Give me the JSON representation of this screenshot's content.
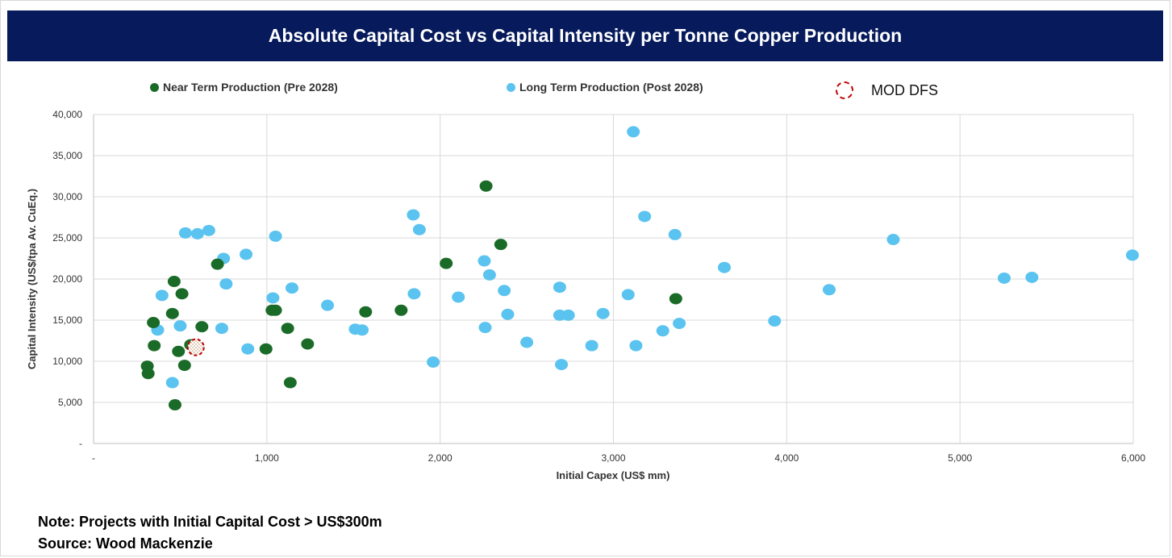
{
  "header": {
    "title": "Absolute Capital Cost vs Capital Intensity per Tonne Copper Production"
  },
  "legend": {
    "near_term": "Near Term Production (Pre 2028)",
    "long_term": "Long Term Production (Post 2028)",
    "mod": "MOD DFS"
  },
  "notes": {
    "note": "Note: Projects with Initial Capital Cost > US$300m",
    "source": "Source: Wood Mackenzie"
  },
  "colors": {
    "near_term": "#1b6b28",
    "long_term": "#5bc3ef",
    "mod_ring": "#c00000",
    "title_bg": "#061a5c"
  },
  "chart_data": {
    "type": "scatter",
    "xlabel": "Initial Capex (US$ mm)",
    "ylabel": "Capital Intensity (US$/tpa Av. CuEq.)",
    "xlim": [
      0,
      6000
    ],
    "ylim": [
      0,
      40000
    ],
    "x_ticks": [
      0,
      1000,
      2000,
      3000,
      4000,
      5000,
      6000
    ],
    "x_tick_labels": [
      "-",
      "1,000",
      "2,000",
      "3,000",
      "4,000",
      "5,000",
      "6,000"
    ],
    "y_ticks": [
      0,
      5000,
      10000,
      15000,
      20000,
      25000,
      30000,
      35000,
      40000
    ],
    "y_tick_labels": [
      "-",
      "5,000",
      "10,000",
      "15,000",
      "20,000",
      "25,000",
      "30,000",
      "35,000",
      "40,000"
    ],
    "grid": true,
    "legend_position": "top",
    "series": [
      {
        "name": "Near Term Production (Pre 2028)",
        "points": [
          [
            310,
            9400
          ],
          [
            315,
            8500
          ],
          [
            345,
            14700
          ],
          [
            350,
            11900
          ],
          [
            455,
            15800
          ],
          [
            465,
            19700
          ],
          [
            470,
            4700
          ],
          [
            490,
            11200
          ],
          [
            510,
            18200
          ],
          [
            525,
            9500
          ],
          [
            560,
            12000
          ],
          [
            625,
            14200
          ],
          [
            715,
            21800
          ],
          [
            995,
            11500
          ],
          [
            1030,
            16200
          ],
          [
            1050,
            16200
          ],
          [
            1120,
            14000
          ],
          [
            1135,
            7400
          ],
          [
            1235,
            12100
          ],
          [
            1570,
            16000
          ],
          [
            1775,
            16200
          ],
          [
            2035,
            21900
          ],
          [
            2265,
            31300
          ],
          [
            2350,
            24200
          ],
          [
            3360,
            17600
          ]
        ]
      },
      {
        "name": "Long Term Production (Post 2028)",
        "points": [
          [
            370,
            13800
          ],
          [
            395,
            18000
          ],
          [
            455,
            7400
          ],
          [
            500,
            14300
          ],
          [
            530,
            25600
          ],
          [
            600,
            25500
          ],
          [
            665,
            25900
          ],
          [
            740,
            14000
          ],
          [
            750,
            22500
          ],
          [
            765,
            19400
          ],
          [
            880,
            23000
          ],
          [
            890,
            11500
          ],
          [
            1035,
            17700
          ],
          [
            1050,
            25200
          ],
          [
            1145,
            18900
          ],
          [
            1350,
            16800
          ],
          [
            1510,
            13900
          ],
          [
            1550,
            13800
          ],
          [
            1845,
            27800
          ],
          [
            1850,
            18200
          ],
          [
            1880,
            26000
          ],
          [
            1960,
            9900
          ],
          [
            2105,
            17800
          ],
          [
            2255,
            22200
          ],
          [
            2260,
            14100
          ],
          [
            2285,
            20500
          ],
          [
            2370,
            18600
          ],
          [
            2390,
            15700
          ],
          [
            2500,
            12300
          ],
          [
            2690,
            19000
          ],
          [
            2690,
            15600
          ],
          [
            2700,
            9600
          ],
          [
            2740,
            15600
          ],
          [
            2875,
            11900
          ],
          [
            2940,
            15800
          ],
          [
            3085,
            18100
          ],
          [
            3115,
            37900
          ],
          [
            3130,
            11900
          ],
          [
            3180,
            27600
          ],
          [
            3285,
            13700
          ],
          [
            3355,
            25400
          ],
          [
            3380,
            14600
          ],
          [
            3640,
            21400
          ],
          [
            3930,
            14900
          ],
          [
            4245,
            18700
          ],
          [
            4615,
            24800
          ],
          [
            5255,
            20100
          ],
          [
            5415,
            20200
          ],
          [
            5995,
            22900
          ]
        ]
      },
      {
        "name": "MOD DFS",
        "points": [
          [
            590,
            11700
          ]
        ]
      }
    ]
  }
}
